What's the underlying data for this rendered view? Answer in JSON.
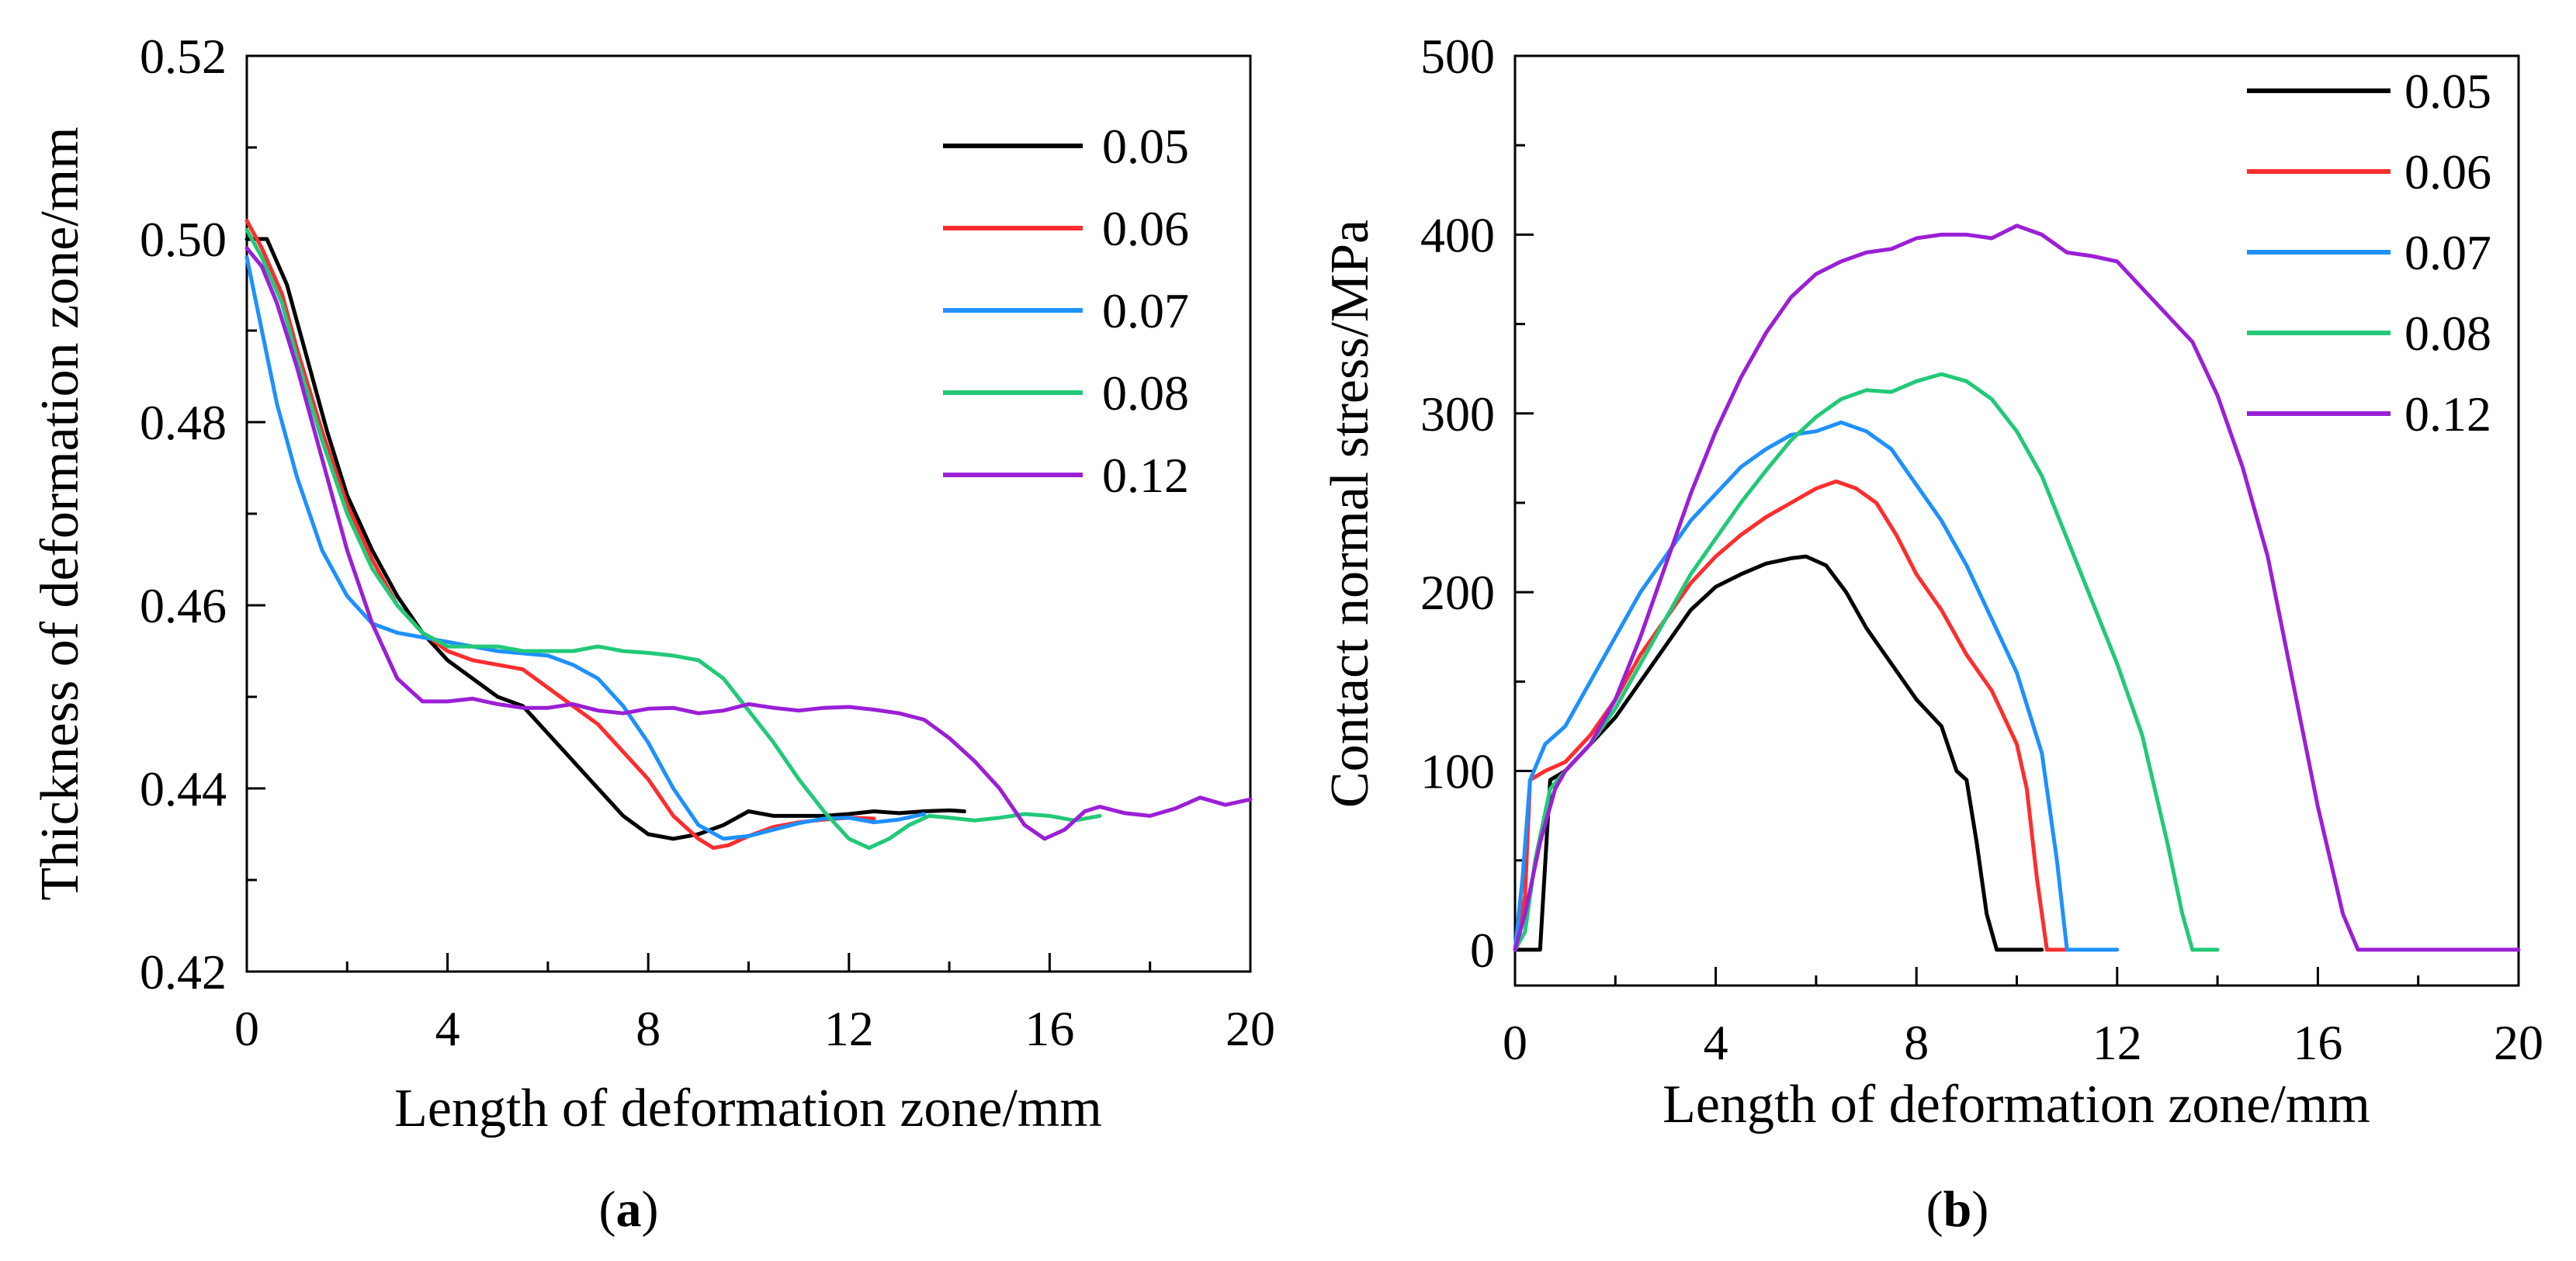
{
  "colors": {
    "0.05": "#000000",
    "0.06": "#ff2d2d",
    "0.07": "#1e90ff",
    "0.08": "#22c978",
    "0.12": "#9b1fd6"
  },
  "chart_data": [
    {
      "id": "a",
      "type": "line",
      "panel_label": "a",
      "xlabel": "Length of deformation zone/mm",
      "ylabel": "Thickness of deformation zone/mm",
      "xlim": [
        0,
        20
      ],
      "ylim": [
        0.42,
        0.52
      ],
      "xticks": [
        "0",
        "4",
        "8",
        "12",
        "16",
        "20"
      ],
      "yticks": [
        "0.42",
        "0.44",
        "0.46",
        "0.48",
        "0.50",
        "0.52"
      ],
      "legend_position": "top-right",
      "series": [
        {
          "name": "0.05",
          "x": [
            0,
            0.4,
            0.8,
            1.2,
            1.6,
            2.0,
            2.5,
            3.0,
            3.5,
            4.0,
            4.5,
            5.0,
            5.5,
            6.0,
            6.5,
            7.0,
            7.5,
            8.0,
            8.5,
            9.0,
            9.5,
            10.0,
            10.5,
            11.0,
            11.5,
            12.0,
            12.5,
            13.0,
            13.5,
            14.0,
            14.3
          ],
          "y": [
            0.5,
            0.5,
            0.495,
            0.487,
            0.479,
            0.472,
            0.466,
            0.461,
            0.457,
            0.454,
            0.452,
            0.45,
            0.449,
            0.446,
            0.443,
            0.44,
            0.437,
            0.435,
            0.4345,
            0.435,
            0.436,
            0.4375,
            0.437,
            0.437,
            0.437,
            0.4372,
            0.4375,
            0.4373,
            0.4375,
            0.4376,
            0.4375
          ]
        },
        {
          "name": "0.06",
          "x": [
            0,
            0.3,
            0.7,
            1.0,
            1.5,
            2.0,
            2.5,
            3.0,
            3.5,
            4.0,
            4.5,
            5.0,
            5.5,
            6.0,
            6.5,
            7.0,
            7.5,
            8.0,
            8.5,
            9.0,
            9.3,
            9.6,
            10.0,
            10.5,
            11.0,
            11.5,
            12.0,
            12.5
          ],
          "y": [
            0.502,
            0.499,
            0.494,
            0.488,
            0.479,
            0.471,
            0.465,
            0.46,
            0.457,
            0.455,
            0.454,
            0.4535,
            0.453,
            0.451,
            0.449,
            0.447,
            0.444,
            0.441,
            0.437,
            0.4345,
            0.4335,
            0.4338,
            0.4348,
            0.4358,
            0.4363,
            0.4366,
            0.4368,
            0.4367
          ]
        },
        {
          "name": "0.07",
          "x": [
            0,
            0.3,
            0.6,
            1.0,
            1.5,
            2.0,
            2.5,
            3.0,
            4.0,
            5.0,
            6.0,
            6.5,
            7.0,
            7.5,
            8.0,
            8.5,
            9.0,
            9.5,
            10.0,
            10.5,
            11.0,
            11.5,
            12.0,
            12.5,
            13.0,
            13.5
          ],
          "y": [
            0.498,
            0.49,
            0.482,
            0.474,
            0.466,
            0.461,
            0.458,
            0.457,
            0.456,
            0.455,
            0.4545,
            0.4535,
            0.452,
            0.449,
            0.445,
            0.44,
            0.436,
            0.4345,
            0.4348,
            0.4355,
            0.4362,
            0.4367,
            0.4368,
            0.4363,
            0.4366,
            0.4372
          ]
        },
        {
          "name": "0.08",
          "x": [
            0,
            0.3,
            0.7,
            1.0,
            1.5,
            2.0,
            2.5,
            3.0,
            3.5,
            4.0,
            4.5,
            5.0,
            5.5,
            6.0,
            6.5,
            7.0,
            7.5,
            8.0,
            8.5,
            9.0,
            9.5,
            10.0,
            10.5,
            11.0,
            11.5,
            12.0,
            12.4,
            12.8,
            13.2,
            13.6,
            14.0,
            14.5,
            15.0,
            15.5,
            16.0,
            16.5,
            17.0
          ],
          "y": [
            0.501,
            0.498,
            0.493,
            0.487,
            0.478,
            0.47,
            0.464,
            0.46,
            0.457,
            0.4555,
            0.4555,
            0.4555,
            0.455,
            0.455,
            0.455,
            0.4555,
            0.455,
            0.4548,
            0.4545,
            0.454,
            0.452,
            0.4485,
            0.445,
            0.441,
            0.4375,
            0.4345,
            0.4335,
            0.4345,
            0.436,
            0.437,
            0.4368,
            0.4365,
            0.4368,
            0.4372,
            0.437,
            0.4365,
            0.437
          ]
        },
        {
          "name": "0.12",
          "x": [
            0,
            0.3,
            0.6,
            1.0,
            1.5,
            2.0,
            2.5,
            3.0,
            3.5,
            4.0,
            4.5,
            5.0,
            5.5,
            6.0,
            6.5,
            7.0,
            7.5,
            8.0,
            8.5,
            9.0,
            9.5,
            10.0,
            10.5,
            11.0,
            11.5,
            12.0,
            12.5,
            13.0,
            13.5,
            14.0,
            14.5,
            15.0,
            15.5,
            15.9,
            16.3,
            16.7,
            17.0,
            17.5,
            18.0,
            18.5,
            19.0,
            19.5,
            20.0
          ],
          "y": [
            0.499,
            0.497,
            0.493,
            0.486,
            0.476,
            0.466,
            0.458,
            0.452,
            0.4495,
            0.4495,
            0.4498,
            0.4492,
            0.4488,
            0.4488,
            0.4492,
            0.4485,
            0.4482,
            0.4487,
            0.4488,
            0.4482,
            0.4485,
            0.4492,
            0.4488,
            0.4485,
            0.4488,
            0.4489,
            0.4486,
            0.4482,
            0.4475,
            0.4455,
            0.443,
            0.44,
            0.436,
            0.4345,
            0.4355,
            0.4375,
            0.438,
            0.4373,
            0.437,
            0.4378,
            0.439,
            0.4382,
            0.4388
          ]
        }
      ]
    },
    {
      "id": "b",
      "type": "line",
      "panel_label": "b",
      "xlabel": "Length of deformation zone/mm",
      "ylabel": "Contact normal stress/MPa",
      "xlim": [
        0,
        20
      ],
      "ylim": [
        -20,
        500
      ],
      "xticks": [
        "0",
        "4",
        "8",
        "12",
        "16",
        "20"
      ],
      "yticks": [
        "0",
        "100",
        "200",
        "300",
        "400",
        "500"
      ],
      "legend_position": "top-right",
      "series": [
        {
          "name": "0.05",
          "x": [
            0,
            0.2,
            0.5,
            0.7,
            1.0,
            1.5,
            2.0,
            2.5,
            3.0,
            3.5,
            4.0,
            4.5,
            5.0,
            5.5,
            5.8,
            6.2,
            6.6,
            7.0,
            7.5,
            8.0,
            8.5,
            8.8,
            9.0,
            9.2,
            9.4,
            9.6,
            9.8,
            10.0,
            10.5
          ],
          "y": [
            0,
            0,
            0,
            95,
            100,
            115,
            130,
            150,
            170,
            190,
            203,
            210,
            216,
            219,
            220,
            215,
            200,
            180,
            160,
            140,
            125,
            100,
            95,
            60,
            20,
            0,
            0,
            0,
            0
          ]
        },
        {
          "name": "0.06",
          "x": [
            0,
            0.2,
            0.3,
            0.6,
            1.0,
            1.5,
            2.0,
            2.5,
            3.0,
            3.5,
            4.0,
            4.5,
            5.0,
            5.5,
            6.0,
            6.4,
            6.8,
            7.2,
            7.6,
            8.0,
            8.5,
            9.0,
            9.5,
            10.0,
            10.2,
            10.4,
            10.6,
            11.0
          ],
          "y": [
            0,
            30,
            95,
            100,
            105,
            120,
            140,
            165,
            185,
            205,
            220,
            232,
            242,
            250,
            258,
            262,
            258,
            250,
            232,
            210,
            190,
            165,
            145,
            115,
            90,
            40,
            0,
            0
          ]
        },
        {
          "name": "0.07",
          "x": [
            0,
            0.15,
            0.3,
            0.6,
            1.0,
            1.5,
            2.0,
            2.5,
            3.0,
            3.5,
            4.0,
            4.5,
            5.0,
            5.5,
            6.0,
            6.5,
            7.0,
            7.5,
            8.0,
            8.5,
            9.0,
            9.5,
            10.0,
            10.5,
            10.8,
            11.0,
            11.3,
            12.0
          ],
          "y": [
            0,
            40,
            95,
            115,
            125,
            150,
            175,
            200,
            220,
            240,
            255,
            270,
            280,
            288,
            290,
            295,
            290,
            280,
            260,
            240,
            215,
            185,
            155,
            110,
            50,
            0,
            0,
            0
          ]
        },
        {
          "name": "0.08",
          "x": [
            0,
            0.2,
            0.4,
            0.7,
            1.0,
            1.5,
            2.0,
            2.5,
            3.0,
            3.5,
            4.0,
            4.5,
            5.0,
            5.5,
            6.0,
            6.5,
            7.0,
            7.5,
            8.0,
            8.5,
            9.0,
            9.5,
            10.0,
            10.5,
            11.0,
            11.5,
            12.0,
            12.5,
            13.0,
            13.3,
            13.5,
            13.7,
            14.0
          ],
          "y": [
            0,
            10,
            50,
            90,
            100,
            115,
            135,
            160,
            185,
            210,
            230,
            250,
            268,
            285,
            298,
            308,
            313,
            312,
            318,
            322,
            318,
            308,
            290,
            265,
            230,
            195,
            160,
            120,
            60,
            20,
            0,
            0,
            0
          ]
        },
        {
          "name": "0.12",
          "x": [
            0,
            0.2,
            0.5,
            0.8,
            1.0,
            1.5,
            2.0,
            2.5,
            3.0,
            3.5,
            4.0,
            4.5,
            5.0,
            5.5,
            6.0,
            6.5,
            7.0,
            7.5,
            8.0,
            8.5,
            9.0,
            9.5,
            10.0,
            10.5,
            11.0,
            11.5,
            12.0,
            12.5,
            13.0,
            13.5,
            14.0,
            14.5,
            15.0,
            15.5,
            16.0,
            16.5,
            16.8,
            17.0,
            18.0,
            19.0,
            20.0
          ],
          "y": [
            0,
            20,
            60,
            90,
            100,
            115,
            140,
            175,
            215,
            255,
            290,
            320,
            345,
            365,
            378,
            385,
            390,
            392,
            398,
            400,
            400,
            398,
            405,
            400,
            390,
            388,
            385,
            370,
            355,
            340,
            310,
            270,
            220,
            150,
            80,
            20,
            0,
            0,
            0,
            0,
            0
          ]
        }
      ]
    }
  ]
}
